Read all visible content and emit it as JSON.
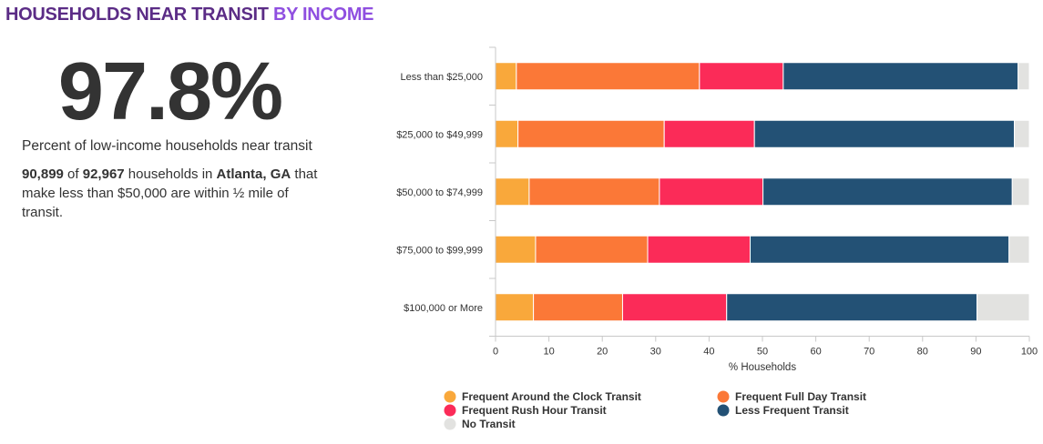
{
  "header": {
    "title_main": "HOUSEHOLDS NEAR TRANSIT",
    "title_accent": "BY INCOME"
  },
  "stat": {
    "big_value": "97.8%",
    "caption": "Percent of low-income households near transit",
    "near_count": "90,899",
    "of_text": " of ",
    "total_count": "92,967",
    "households_in_text": " households in ",
    "location": "Atlanta, GA",
    "rest_text": " that make less than $50,000 are within ½ mile of transit."
  },
  "chart_data": {
    "type": "bar",
    "orientation": "horizontal",
    "stacked": true,
    "categories": [
      "Less than $25,000",
      "$25,000 to $49,999",
      "$50,000 to $74,999",
      "$75,000 to $99,999",
      "$100,000 or More"
    ],
    "series": [
      {
        "name": "Frequent Around the Clock Transit",
        "color": "#f9a83b",
        "values": [
          3.9,
          4.2,
          6.3,
          7.5,
          7.1
        ]
      },
      {
        "name": "Frequent Full Day Transit",
        "color": "#fb7837",
        "values": [
          34.3,
          27.4,
          24.4,
          21.0,
          16.7
        ]
      },
      {
        "name": "Frequent Rush Hour Transit",
        "color": "#fb2b58",
        "values": [
          15.7,
          16.9,
          19.4,
          19.2,
          19.5
        ]
      },
      {
        "name": "Less Frequent Transit",
        "color": "#235175",
        "values": [
          44.0,
          48.7,
          46.7,
          48.5,
          46.9
        ]
      },
      {
        "name": "No Transit",
        "color": "#e2e2e0",
        "values": [
          2.1,
          2.8,
          3.2,
          3.8,
          9.8
        ]
      }
    ],
    "xlabel": "% Households",
    "ylabel": "",
    "xlim": [
      0,
      100
    ],
    "xticks": [
      0,
      10,
      20,
      30,
      40,
      50,
      60,
      70,
      80,
      90,
      100
    ],
    "grid": false,
    "legend_position": "bottom"
  }
}
